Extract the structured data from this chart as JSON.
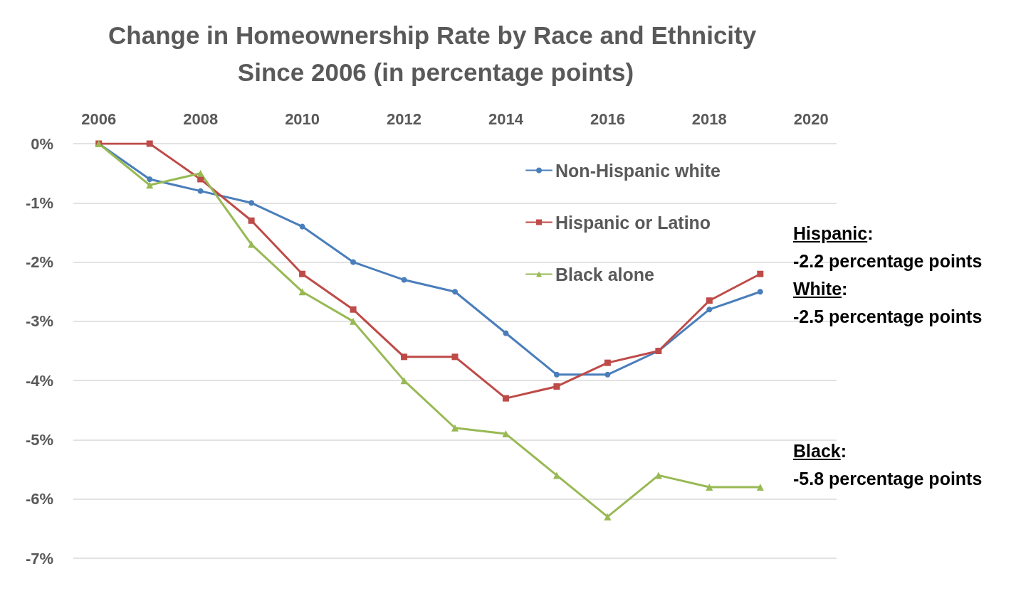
{
  "chart_data": {
    "type": "line",
    "title": "Change in Homeownership Rate by Race and Ethnicity Since 2006 (in percentage points)",
    "x": [
      2006,
      2007,
      2008,
      2009,
      2010,
      2011,
      2012,
      2013,
      2014,
      2015,
      2016,
      2017,
      2018,
      2019
    ],
    "series": [
      {
        "name": "Non-Hispanic white",
        "color": "#4a7ebb",
        "marker": "circle",
        "values": [
          0,
          -0.6,
          -0.8,
          -1.0,
          -1.4,
          -2.0,
          -2.3,
          -2.5,
          -3.2,
          -3.9,
          -3.9,
          -3.5,
          -2.8,
          -2.5
        ]
      },
      {
        "name": "Hispanic or Latino",
        "color": "#be4b48",
        "marker": "square",
        "values": [
          0,
          0,
          -0.6,
          -1.3,
          -2.2,
          -2.8,
          -3.6,
          -3.6,
          -4.3,
          -4.1,
          -3.7,
          -3.5,
          -2.65,
          -2.2
        ]
      },
      {
        "name": "Black alone",
        "color": "#98b954",
        "marker": "triangle",
        "values": [
          0,
          -0.7,
          -0.5,
          -1.7,
          -2.5,
          -3.0,
          -4.0,
          -4.8,
          -4.9,
          -5.6,
          -6.3,
          -5.6,
          -5.8,
          -5.8
        ]
      }
    ],
    "xlim": [
      2005.5,
      2020.5
    ],
    "xticks": [
      2006,
      2008,
      2010,
      2012,
      2014,
      2016,
      2018,
      2020
    ],
    "ylim": [
      -7,
      0
    ],
    "yticks": [
      {
        "value": 0,
        "label": "0%"
      },
      {
        "value": -1,
        "label": "-1%"
      },
      {
        "value": -2,
        "label": "-2%"
      },
      {
        "value": -3,
        "label": "-3%"
      },
      {
        "value": -4,
        "label": "-4%"
      },
      {
        "value": -5,
        "label": "-5%"
      },
      {
        "value": -6,
        "label": "-6%"
      },
      {
        "value": -7,
        "label": "-7%"
      }
    ],
    "grid": "y",
    "legend": "top right",
    "line_style": "solid",
    "annotations": [
      "Hispanic:\n-2.2 percentage points",
      "White:\n-2.5 percentage points",
      "Black:\n-5.8 percentage points"
    ]
  }
}
